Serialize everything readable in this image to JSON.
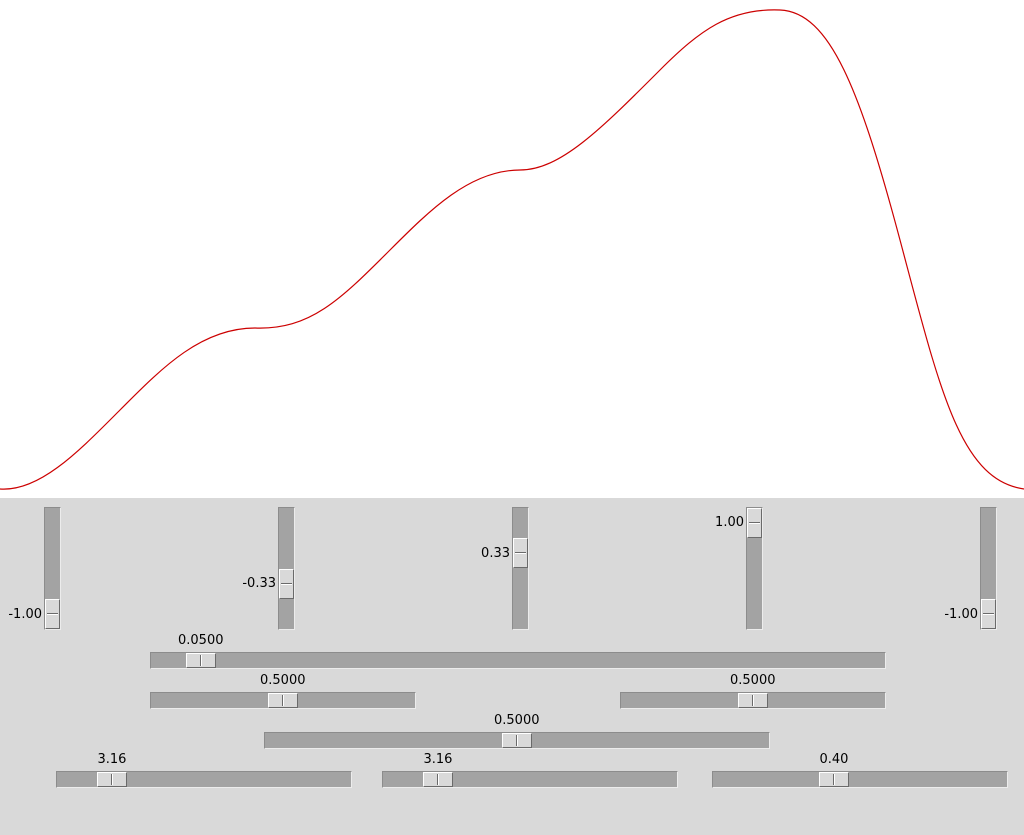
{
  "plot": {
    "curve_color": "#cc0000",
    "background": "#ffffff"
  },
  "vertical_sliders": [
    {
      "name": "point-1",
      "value": "-1.00",
      "level": -1.0
    },
    {
      "name": "point-2",
      "value": "-0.33",
      "level": -0.33
    },
    {
      "name": "point-3",
      "value": "0.33",
      "level": 0.33
    },
    {
      "name": "point-4",
      "value": "1.00",
      "level": 1.0
    },
    {
      "name": "point-5",
      "value": "-1.00",
      "level": -1.0
    }
  ],
  "horizontal_sliders": [
    {
      "name": "slider-a",
      "value": "0.0500",
      "fraction": 0.05
    },
    {
      "name": "slider-b",
      "value": "0.5000",
      "fraction": 0.5
    },
    {
      "name": "slider-c",
      "value": "0.5000",
      "fraction": 0.5
    },
    {
      "name": "slider-d",
      "value": "0.5000",
      "fraction": 0.5
    },
    {
      "name": "slider-e",
      "value": "3.16",
      "fraction": 0.15
    },
    {
      "name": "slider-f",
      "value": "3.16",
      "fraction": 0.15
    },
    {
      "name": "slider-g",
      "value": "0.40",
      "fraction": 0.4
    }
  ]
}
